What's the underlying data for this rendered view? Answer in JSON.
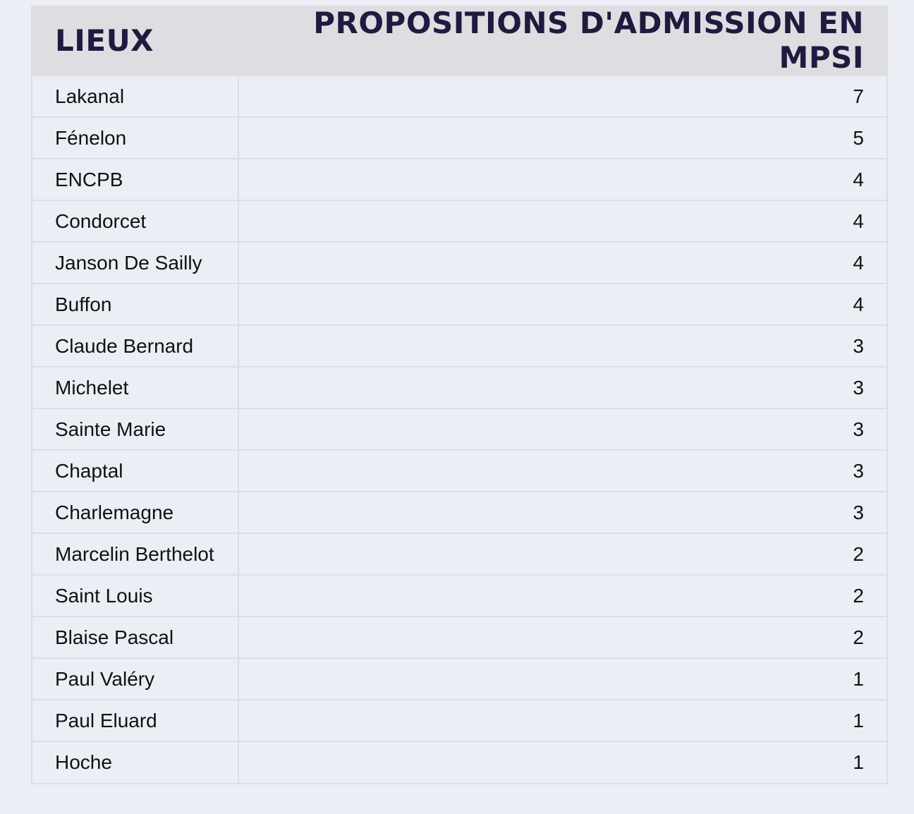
{
  "table": {
    "headers": {
      "lieux": "LIEUX",
      "propositions": "PROPOSITIONS D'ADMISSION EN MPSI"
    },
    "rows": [
      {
        "name": "Lakanal",
        "value": "7"
      },
      {
        "name": "Fénelon",
        "value": "5"
      },
      {
        "name": "ENCPB",
        "value": "4"
      },
      {
        "name": "Condorcet",
        "value": "4"
      },
      {
        "name": "Janson De Sailly",
        "value": "4"
      },
      {
        "name": "Buffon",
        "value": "4"
      },
      {
        "name": "Claude Bernard",
        "value": "3"
      },
      {
        "name": "Michelet",
        "value": "3"
      },
      {
        "name": "Sainte Marie",
        "value": "3"
      },
      {
        "name": "Chaptal",
        "value": "3"
      },
      {
        "name": "Charlemagne",
        "value": "3"
      },
      {
        "name": "Marcelin Berthelot",
        "value": "2"
      },
      {
        "name": "Saint Louis",
        "value": "2"
      },
      {
        "name": "Blaise Pascal",
        "value": "2"
      },
      {
        "name": "Paul Valéry",
        "value": "1"
      },
      {
        "name": "Paul Eluard",
        "value": "1"
      },
      {
        "name": "Hoche",
        "value": "1"
      }
    ]
  },
  "colors": {
    "background": "#ebeef5",
    "header_background": "#dedee2",
    "header_text": "#1e1b3f",
    "border": "#dcdde2"
  }
}
